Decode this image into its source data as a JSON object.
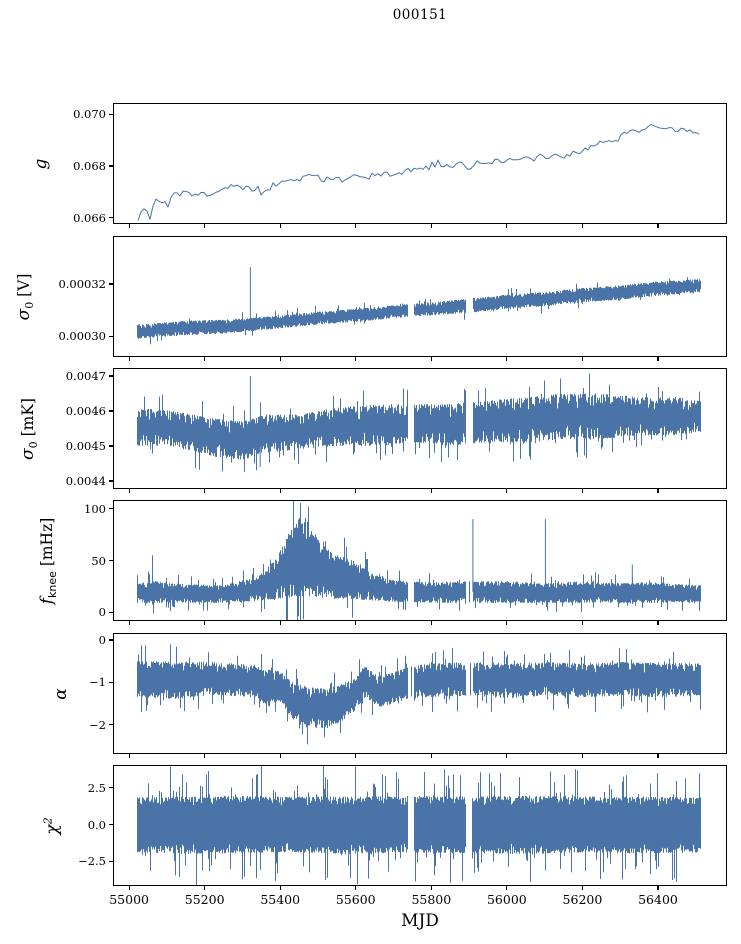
{
  "title": "000151",
  "chart_data": {
    "type": "line",
    "title": "000151",
    "xlabel": "MJD",
    "xlim": [
      54960,
      56580
    ],
    "xticks": [
      {
        "v": 55000,
        "label": "55000"
      },
      {
        "v": 55200,
        "label": "55200"
      },
      {
        "v": 55400,
        "label": "55400"
      },
      {
        "v": 55600,
        "label": "55600"
      },
      {
        "v": 55800,
        "label": "55800"
      },
      {
        "v": 56000,
        "label": "56000"
      },
      {
        "v": 56200,
        "label": "56200"
      },
      {
        "v": 56400,
        "label": "56400"
      }
    ],
    "data_range": [
      55020,
      56515
    ],
    "gaps": [
      [
        55738,
        55754
      ],
      [
        55893,
        55911
      ]
    ],
    "line_color": "#4a74a8",
    "axis_color": "#000000",
    "seed": 151,
    "grid": false,
    "legend": "none",
    "panels": [
      {
        "id": "g",
        "kind": "line",
        "ylabel_parts": [
          {
            "text": "g",
            "style": "it"
          }
        ],
        "ylim": [
          0.0658,
          0.0704
        ],
        "yticks": [
          {
            "v": 0.066,
            "label": "0.066"
          },
          {
            "v": 0.068,
            "label": "0.068"
          },
          {
            "v": 0.07,
            "label": "0.070"
          }
        ],
        "noise_amp": 0.00016,
        "use_gaps": false,
        "trend": [
          [
            55020,
            0.0659
          ],
          [
            55040,
            0.0664
          ],
          [
            55055,
            0.066
          ],
          [
            55070,
            0.0667
          ],
          [
            55090,
            0.0666
          ],
          [
            55110,
            0.0668
          ],
          [
            55130,
            0.0669
          ],
          [
            55150,
            0.067
          ],
          [
            55170,
            0.0669
          ],
          [
            55200,
            0.0669
          ],
          [
            55230,
            0.067
          ],
          [
            55260,
            0.0672
          ],
          [
            55290,
            0.0673
          ],
          [
            55310,
            0.0671
          ],
          [
            55330,
            0.0672
          ],
          [
            55360,
            0.0671
          ],
          [
            55390,
            0.0673
          ],
          [
            55420,
            0.0674
          ],
          [
            55450,
            0.0675
          ],
          [
            55480,
            0.0676
          ],
          [
            55510,
            0.0675
          ],
          [
            55540,
            0.0675
          ],
          [
            55570,
            0.0674
          ],
          [
            55590,
            0.0677
          ],
          [
            55610,
            0.0675
          ],
          [
            55640,
            0.0676
          ],
          [
            55670,
            0.0677
          ],
          [
            55700,
            0.0677
          ],
          [
            55730,
            0.0678
          ],
          [
            55760,
            0.0679
          ],
          [
            55790,
            0.068
          ],
          [
            55820,
            0.0681
          ],
          [
            55850,
            0.068
          ],
          [
            55880,
            0.0681
          ],
          [
            55900,
            0.0679
          ],
          [
            55920,
            0.0682
          ],
          [
            55950,
            0.0681
          ],
          [
            55980,
            0.0682
          ],
          [
            56010,
            0.0682
          ],
          [
            56040,
            0.0683
          ],
          [
            56070,
            0.0682
          ],
          [
            56100,
            0.0684
          ],
          [
            56130,
            0.0684
          ],
          [
            56160,
            0.0685
          ],
          [
            56190,
            0.0686
          ],
          [
            56220,
            0.0687
          ],
          [
            56250,
            0.0689
          ],
          [
            56280,
            0.069
          ],
          [
            56310,
            0.0692
          ],
          [
            56340,
            0.0693
          ],
          [
            56370,
            0.0695
          ],
          [
            56390,
            0.0696
          ],
          [
            56410,
            0.0694
          ],
          [
            56430,
            0.0695
          ],
          [
            56460,
            0.0694
          ],
          [
            56490,
            0.0694
          ],
          [
            56515,
            0.0693
          ]
        ]
      },
      {
        "id": "sigma0-v",
        "kind": "band",
        "ylabel_parts": [
          {
            "text": "σ",
            "style": "it"
          },
          {
            "text": "0",
            "style": "sub"
          },
          {
            "text": " [V]",
            "style": "up"
          }
        ],
        "ylim": [
          0.0002925,
          0.000338
        ],
        "yticks": [
          {
            "v": 0.0003,
            "label": "0.00030"
          },
          {
            "v": 0.00032,
            "label": "0.00032"
          }
        ],
        "use_gaps": true,
        "jitter": {
          "in": 0.3,
          "out": 0.5,
          "p": 0.06
        },
        "envelope": [
          [
            55020,
            0.000299,
            0.0003045
          ],
          [
            55150,
            0.0003005,
            0.000306
          ],
          [
            55250,
            0.000301,
            0.0003065
          ],
          [
            55321,
            0.000302,
            0.000307
          ],
          [
            55400,
            0.000303,
            0.000308
          ],
          [
            55500,
            0.0003045,
            0.0003095
          ],
          [
            55600,
            0.0003055,
            0.0003105
          ],
          [
            55700,
            0.000307,
            0.000312
          ],
          [
            55800,
            0.000308,
            0.000313
          ],
          [
            55900,
            0.000309,
            0.0003145
          ],
          [
            56000,
            0.0003105,
            0.000316
          ],
          [
            56100,
            0.0003115,
            0.000317
          ],
          [
            56200,
            0.000313,
            0.0003185
          ],
          [
            56300,
            0.000314,
            0.0003195
          ],
          [
            56400,
            0.0003155,
            0.000321
          ],
          [
            56515,
            0.000317,
            0.000322
          ]
        ],
        "spikes": [
          [
            55321,
            0.0003265
          ]
        ]
      },
      {
        "id": "sigma0-mk",
        "kind": "band",
        "ylabel_parts": [
          {
            "text": "σ",
            "style": "it"
          },
          {
            "text": "0",
            "style": "sub"
          },
          {
            "text": " [mK]",
            "style": "up"
          }
        ],
        "ylim": [
          0.00438,
          0.00472
        ],
        "yticks": [
          {
            "v": 0.0044,
            "label": "0.0044"
          },
          {
            "v": 0.0045,
            "label": "0.0045"
          },
          {
            "v": 0.0046,
            "label": "0.0046"
          },
          {
            "v": 0.0047,
            "label": "0.0047"
          }
        ],
        "use_gaps": true,
        "jitter": {
          "in": 0.35,
          "out": 0.45,
          "p": 0.08
        },
        "envelope": [
          [
            55020,
            0.0045,
            0.00461
          ],
          [
            55120,
            0.0045,
            0.0046
          ],
          [
            55220,
            0.00447,
            0.00458
          ],
          [
            55300,
            0.00446,
            0.00457
          ],
          [
            55360,
            0.00448,
            0.00459
          ],
          [
            55450,
            0.00449,
            0.00459
          ],
          [
            55550,
            0.0045,
            0.00461
          ],
          [
            55650,
            0.0045,
            0.00462
          ],
          [
            55750,
            0.00451,
            0.00462
          ],
          [
            55850,
            0.0045,
            0.00462
          ],
          [
            55950,
            0.00451,
            0.00463
          ],
          [
            56050,
            0.00451,
            0.00464
          ],
          [
            56150,
            0.00452,
            0.00465
          ],
          [
            56250,
            0.00452,
            0.00465
          ],
          [
            56350,
            0.00453,
            0.00464
          ],
          [
            56450,
            0.00453,
            0.00464
          ],
          [
            56515,
            0.00454,
            0.00463
          ]
        ],
        "spikes": [
          [
            55321,
            0.0047
          ],
          [
            55332,
            0.00445
          ],
          [
            55347,
            0.00444
          ]
        ]
      },
      {
        "id": "fknee",
        "kind": "band",
        "ylabel_parts": [
          {
            "text": "f",
            "style": "it"
          },
          {
            "text": "knee",
            "style": "sub-sans"
          },
          {
            "text": " [mHz]",
            "style": "up"
          }
        ],
        "ylim": [
          -7.5,
          107.5
        ],
        "yticks": [
          {
            "v": 0,
            "label": "0"
          },
          {
            "v": 50,
            "label": "50"
          },
          {
            "v": 100,
            "label": "100"
          }
        ],
        "use_gaps": true,
        "jitter": {
          "in": 0.3,
          "out": 0.5,
          "p": 0.1
        },
        "envelope": [
          [
            55020,
            9,
            28
          ],
          [
            55065,
            9,
            30
          ],
          [
            55150,
            9,
            27
          ],
          [
            55250,
            9,
            26
          ],
          [
            55300,
            10,
            31
          ],
          [
            55340,
            11,
            34
          ],
          [
            55390,
            13,
            52
          ],
          [
            55420,
            14,
            75
          ],
          [
            55450,
            15,
            92
          ],
          [
            55480,
            15,
            82
          ],
          [
            55510,
            14,
            66
          ],
          [
            55545,
            13,
            56
          ],
          [
            55580,
            13,
            52
          ],
          [
            55615,
            12,
            46
          ],
          [
            55650,
            11,
            36
          ],
          [
            55700,
            10,
            31
          ],
          [
            55800,
            9,
            29
          ],
          [
            55900,
            9,
            30
          ],
          [
            56000,
            9,
            30
          ],
          [
            56100,
            9,
            28
          ],
          [
            56200,
            9,
            30
          ],
          [
            56300,
            9,
            28
          ],
          [
            56400,
            9,
            29
          ],
          [
            56515,
            9,
            26
          ]
        ],
        "spikes": [
          [
            55062,
            55
          ],
          [
            55910,
            90
          ],
          [
            56102,
            90
          ],
          [
            56332,
            46
          ]
        ]
      },
      {
        "id": "alpha",
        "kind": "band",
        "ylabel_parts": [
          {
            "text": "α",
            "style": "it"
          }
        ],
        "ylim": [
          -2.67,
          0.14
        ],
        "yticks": [
          {
            "v": -2,
            "label": "−2"
          },
          {
            "v": -1,
            "label": "−1"
          },
          {
            "v": 0,
            "label": "0"
          }
        ],
        "use_gaps": true,
        "jitter": {
          "in": 0.3,
          "out": 0.45,
          "p": 0.09
        },
        "envelope": [
          [
            55020,
            -1.35,
            -0.5
          ],
          [
            55120,
            -1.4,
            -0.5
          ],
          [
            55220,
            -1.3,
            -0.52
          ],
          [
            55320,
            -1.35,
            -0.58
          ],
          [
            55370,
            -1.55,
            -0.7
          ],
          [
            55400,
            -1.45,
            -0.72
          ],
          [
            55430,
            -1.85,
            -1.0
          ],
          [
            55470,
            -2.05,
            -1.1
          ],
          [
            55520,
            -2.1,
            -1.15
          ],
          [
            55560,
            -1.95,
            -1.05
          ],
          [
            55595,
            -1.7,
            -0.9
          ],
          [
            55625,
            -1.35,
            -0.62
          ],
          [
            55660,
            -1.6,
            -0.85
          ],
          [
            55700,
            -1.5,
            -0.75
          ],
          [
            55740,
            -1.4,
            -0.62
          ],
          [
            55800,
            -1.35,
            -0.55
          ],
          [
            55900,
            -1.32,
            -0.52
          ],
          [
            56000,
            -1.38,
            -0.55
          ],
          [
            56100,
            -1.32,
            -0.52
          ],
          [
            56200,
            -1.36,
            -0.55
          ],
          [
            56300,
            -1.32,
            -0.52
          ],
          [
            56400,
            -1.36,
            -0.54
          ],
          [
            56515,
            -1.32,
            -0.55
          ]
        ],
        "spikes": []
      },
      {
        "id": "chi2",
        "kind": "band",
        "ylabel_parts": [
          {
            "text": "χ",
            "style": "it"
          },
          {
            "text": "2",
            "style": "sup"
          }
        ],
        "ylim": [
          -4.1,
          3.97
        ],
        "yticks": [
          {
            "v": -2.5,
            "label": "−2.5"
          },
          {
            "v": 0,
            "label": "0.0"
          },
          {
            "v": 2.5,
            "label": "2.5"
          }
        ],
        "use_gaps": true,
        "jitter": {
          "in": 0.18,
          "out": 0.55,
          "p": 0.14
        },
        "envelope": [
          [
            55020,
            -1.9,
            1.85
          ],
          [
            55150,
            -2.0,
            1.9
          ],
          [
            55300,
            -1.95,
            1.95
          ],
          [
            55450,
            -1.9,
            1.9
          ],
          [
            55600,
            -2.0,
            1.9
          ],
          [
            55750,
            -1.9,
            1.95
          ],
          [
            55900,
            -1.95,
            1.9
          ],
          [
            56050,
            -2.0,
            1.95
          ],
          [
            56200,
            -1.9,
            1.9
          ],
          [
            56350,
            -1.95,
            1.9
          ],
          [
            56515,
            -1.9,
            1.85
          ]
        ],
        "spikes": []
      }
    ]
  }
}
